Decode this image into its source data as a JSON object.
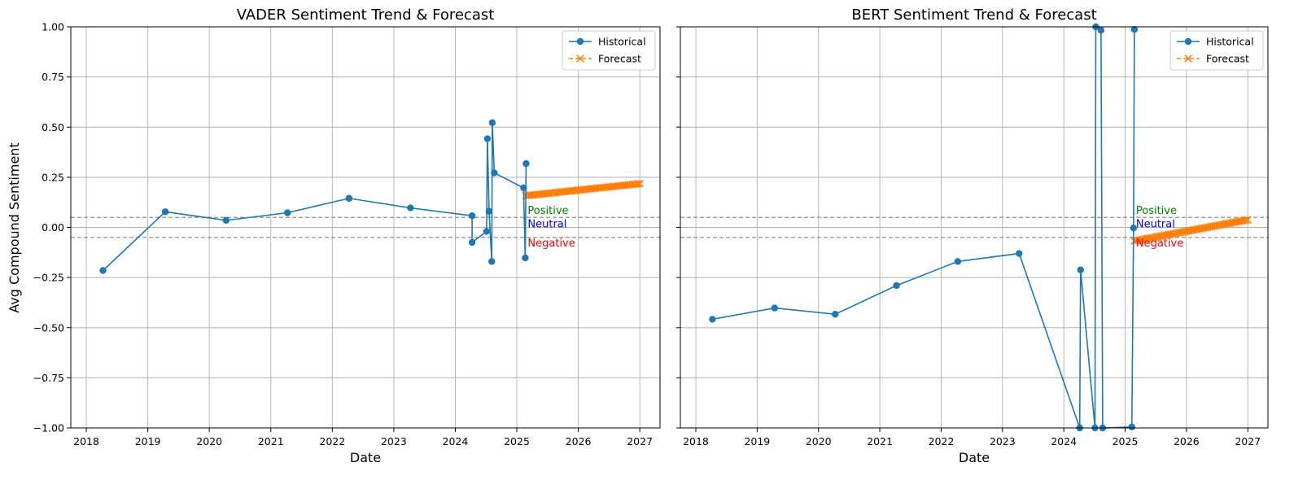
{
  "figure": {
    "ylabel": "Avg Compound Sentiment"
  },
  "legend": {
    "historical": "Historical",
    "forecast": "Forecast"
  },
  "colors": {
    "historical": "#1f77b4",
    "forecast": "#ff7f0e",
    "positive": "#008000",
    "neutral": "#0000ff",
    "negative": "#ff0000",
    "threshold": "#808080",
    "grid": "#b0b0b0"
  },
  "chart_data": [
    {
      "type": "line",
      "title": "VADER Sentiment Trend & Forecast",
      "xlabel": "Date",
      "ylabel": "Avg Compound Sentiment",
      "xlim": [
        "2017-10-01",
        "2027-05-01"
      ],
      "ylim": [
        -1.0,
        1.0
      ],
      "x_ticks": [
        "2018",
        "2019",
        "2020",
        "2021",
        "2022",
        "2023",
        "2024",
        "2025",
        "2026",
        "2027"
      ],
      "y_ticks": [
        "1.00",
        "0.75",
        "0.50",
        "0.25",
        "0.00",
        "−0.25",
        "−0.50",
        "−0.75",
        "−1.00"
      ],
      "grid": true,
      "legend_position": "top-right",
      "thresholds": [
        0.05,
        -0.05
      ],
      "annotations": [
        "Positive",
        "Neutral",
        "Negative"
      ],
      "series": [
        {
          "name": "Historical",
          "x": [
            "2018-04-10",
            "2019-04-15",
            "2020-04-10",
            "2021-04-10",
            "2022-04-10",
            "2023-04-10",
            "2024-04-10",
            "2024-04-10",
            "2024-07-05",
            "2024-07-10",
            "2024-07-20",
            "2024-08-05",
            "2024-08-08",
            "2024-08-20",
            "2025-02-10",
            "2025-02-20",
            "2025-02-25"
          ],
          "values": [
            -0.215,
            0.078,
            0.035,
            0.073,
            0.145,
            0.097,
            0.058,
            -0.075,
            -0.02,
            0.442,
            0.08,
            -0.17,
            0.522,
            0.272,
            0.197,
            -0.152,
            0.318
          ]
        },
        {
          "name": "Forecast",
          "x_start": "2025-02-25",
          "x_end": "2027-01-01",
          "start": 0.158,
          "end": 0.218,
          "points": 60
        }
      ]
    },
    {
      "type": "line",
      "title": "BERT Sentiment Trend & Forecast",
      "xlabel": "Date",
      "xlim": [
        "2017-10-01",
        "2027-05-01"
      ],
      "ylim": [
        -1.0,
        1.0
      ],
      "x_ticks": [
        "2018",
        "2019",
        "2020",
        "2021",
        "2022",
        "2023",
        "2024",
        "2025",
        "2026",
        "2027"
      ],
      "grid": true,
      "legend_position": "top-right",
      "thresholds": [
        0.05,
        -0.05
      ],
      "annotations": [
        "Positive",
        "Neutral",
        "Negative"
      ],
      "series": [
        {
          "name": "Historical",
          "x": [
            "2018-04-10",
            "2019-04-15",
            "2020-04-10",
            "2021-04-10",
            "2022-04-10",
            "2023-04-10",
            "2024-04-05",
            "2024-04-10",
            "2024-07-05",
            "2024-07-10",
            "2024-08-10",
            "2024-08-20",
            "2025-02-10",
            "2025-02-20",
            "2025-02-25"
          ],
          "values": [
            -0.458,
            -0.402,
            -0.433,
            -0.29,
            -0.17,
            -0.13,
            -1.0,
            -0.212,
            -1.0,
            1.0,
            0.983,
            -1.0,
            -0.995,
            -0.003,
            0.987
          ]
        },
        {
          "name": "Forecast",
          "x_start": "2025-02-25",
          "x_end": "2027-01-01",
          "start": -0.068,
          "end": 0.038,
          "points": 60
        }
      ]
    }
  ]
}
